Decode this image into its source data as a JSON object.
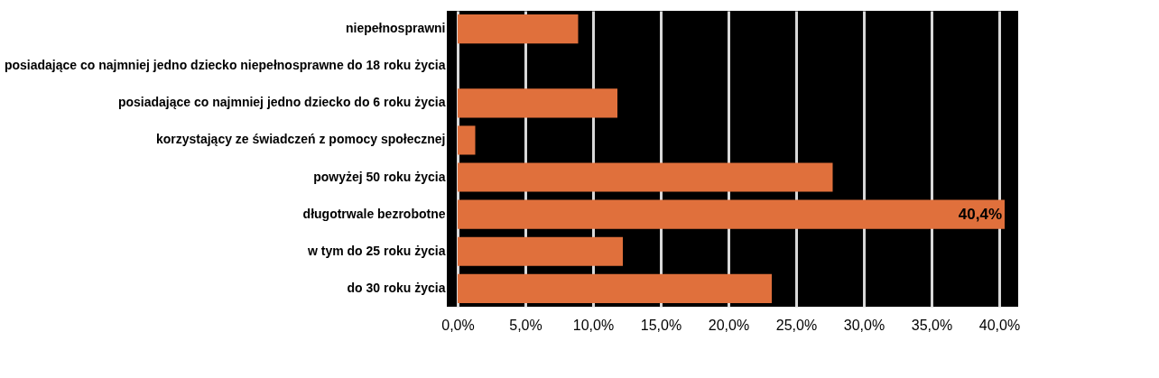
{
  "chart_data": {
    "type": "bar",
    "orientation": "horizontal",
    "categories": [
      "niepełnosprawni",
      "posiadające co najmniej jedno dziecko niepełnosprawne do 18 roku życia",
      "posiadające co najmniej jedno dziecko do 6 roku życia",
      "korzystający ze świadczeń z pomocy społecznej",
      "powyżej 50 roku życia",
      "długotrwale bezrobotne",
      "w tym do 25 roku życia",
      "do 30 roku życia"
    ],
    "values": [
      8.9,
      0,
      11.8,
      1.3,
      27.7,
      40.4,
      12.2,
      23.2
    ],
    "value_labels": [
      null,
      null,
      null,
      null,
      null,
      "40,4%",
      null,
      null
    ],
    "color": "#e0703c",
    "xlim": [
      -0.8,
      41.4
    ],
    "xticks": [
      {
        "value": 0,
        "label": "0,0%"
      },
      {
        "value": 5,
        "label": "5,0%"
      },
      {
        "value": 10,
        "label": "10,0%"
      },
      {
        "value": 15,
        "label": "15,0%"
      },
      {
        "value": 20,
        "label": "20,0%"
      },
      {
        "value": 25,
        "label": "25,0%"
      },
      {
        "value": 30,
        "label": "30,0%"
      },
      {
        "value": 35,
        "label": "35,0%"
      },
      {
        "value": 40,
        "label": "40,0%"
      }
    ],
    "grid": "x"
  }
}
